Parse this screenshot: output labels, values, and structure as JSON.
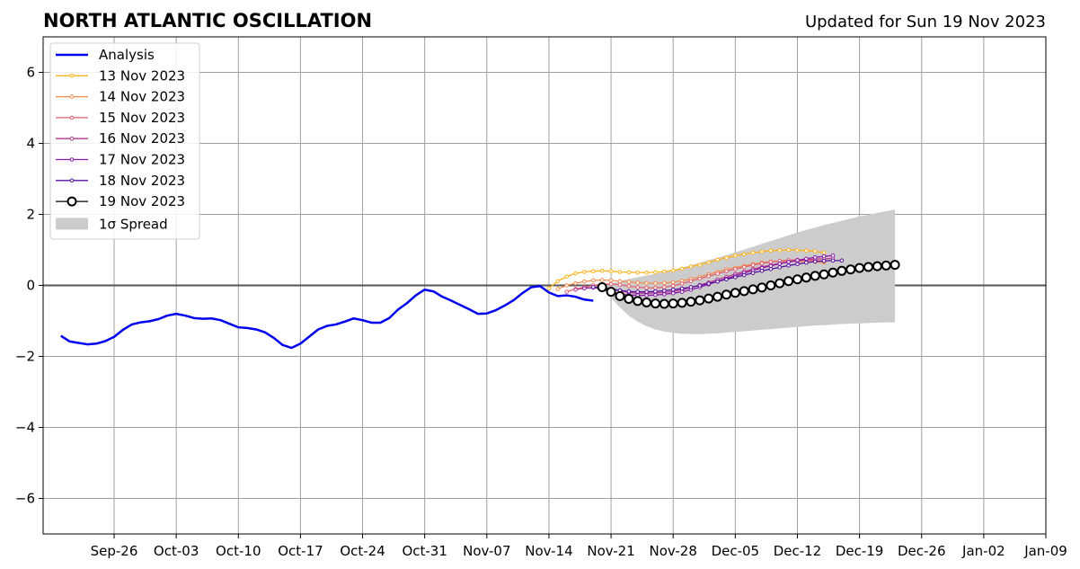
{
  "chart_data": {
    "type": "line",
    "title": "NORTH ATLANTIC OSCILLATION",
    "subtitle": "Updated for Sun 19 Nov 2023",
    "xlabel": "",
    "ylabel": "",
    "ylim": [
      -7,
      7
    ],
    "xlim": [
      "2023-09-18",
      "2024-01-09"
    ],
    "grid": true,
    "legend_position": "top-left",
    "x_ticks": [
      "Sep-26",
      "Oct-03",
      "Oct-10",
      "Oct-17",
      "Oct-24",
      "Oct-31",
      "Nov-07",
      "Nov-14",
      "Nov-21",
      "Nov-28",
      "Dec-05",
      "Dec-12",
      "Dec-19",
      "Dec-26",
      "Jan-02",
      "Jan-09"
    ],
    "y_ticks": [
      "−6",
      "−4",
      "−2",
      "0",
      "2",
      "4",
      "6"
    ],
    "analysis": {
      "name": "Analysis",
      "color": "#0000ee",
      "start": "2023-09-20",
      "values": [
        -1.42,
        -1.58,
        -1.62,
        -1.66,
        -1.64,
        -1.57,
        -1.45,
        -1.25,
        -1.1,
        -1.04,
        -1.01,
        -0.95,
        -0.85,
        -0.8,
        -0.85,
        -0.92,
        -0.94,
        -0.93,
        -0.98,
        -1.08,
        -1.18,
        -1.2,
        -1.24,
        -1.32,
        -1.48,
        -1.68,
        -1.76,
        -1.64,
        -1.44,
        -1.24,
        -1.14,
        -1.1,
        -1.02,
        -0.93,
        -0.98,
        -1.05,
        -1.05,
        -0.92,
        -0.68,
        -0.5,
        -0.28,
        -0.12,
        -0.17,
        -0.32,
        -0.43,
        -0.55,
        -0.67,
        -0.8,
        -0.79,
        -0.7,
        -0.57,
        -0.42,
        -0.22,
        -0.05,
        -0.02,
        -0.2,
        -0.3,
        -0.28,
        -0.32,
        -0.4,
        -0.43
      ]
    },
    "forecasts": [
      {
        "name": "13 Nov 2023",
        "color": "#ffb21c",
        "start": "2023-11-14",
        "values": [
          -0.08,
          0.12,
          0.25,
          0.34,
          0.38,
          0.4,
          0.41,
          0.4,
          0.38,
          0.37,
          0.36,
          0.36,
          0.37,
          0.39,
          0.42,
          0.47,
          0.53,
          0.58,
          0.65,
          0.72,
          0.78,
          0.84,
          0.88,
          0.92,
          0.95,
          0.98,
          0.99,
          1.0,
          0.99,
          0.98,
          0.96,
          0.92
        ]
      },
      {
        "name": "14 Nov 2023",
        "color": "#f08b50",
        "start": "2023-11-15",
        "values": [
          -0.1,
          0.0,
          0.06,
          0.11,
          0.14,
          0.15,
          0.14,
          0.12,
          0.1,
          0.08,
          0.06,
          0.06,
          0.07,
          0.09,
          0.13,
          0.18,
          0.24,
          0.31,
          0.38,
          0.45,
          0.5,
          0.55,
          0.6,
          0.64,
          0.67,
          0.68,
          0.68,
          0.68,
          0.67,
          0.66,
          0.65
        ]
      },
      {
        "name": "15 Nov 2023",
        "color": "#e06070",
        "start": "2023-11-16",
        "values": [
          -0.18,
          -0.1,
          -0.05,
          0.0,
          0.03,
          0.04,
          0.02,
          -0.02,
          -0.05,
          -0.07,
          -0.07,
          -0.05,
          -0.01,
          0.05,
          0.12,
          0.19,
          0.26,
          0.33,
          0.4,
          0.46,
          0.52,
          0.57,
          0.62,
          0.66,
          0.69,
          0.71,
          0.72,
          0.71,
          0.7,
          0.68
        ]
      },
      {
        "name": "16 Nov 2023",
        "color": "#b6388f",
        "start": "2023-11-17",
        "values": [
          -0.12,
          -0.08,
          -0.06,
          -0.06,
          -0.1,
          -0.15,
          -0.2,
          -0.22,
          -0.22,
          -0.21,
          -0.2,
          -0.17,
          -0.12,
          -0.06,
          0.01,
          0.08,
          0.16,
          0.24,
          0.32,
          0.39,
          0.46,
          0.52,
          0.57,
          0.62,
          0.66,
          0.69,
          0.72,
          0.74,
          0.75,
          0.76
        ]
      },
      {
        "name": "17 Nov 2023",
        "color": "#8b1aa8",
        "start": "2023-11-18",
        "values": [
          -0.08,
          -0.06,
          -0.1,
          -0.18,
          -0.24,
          -0.27,
          -0.28,
          -0.28,
          -0.27,
          -0.25,
          -0.22,
          -0.18,
          -0.12,
          -0.05,
          0.03,
          0.11,
          0.19,
          0.27,
          0.35,
          0.42,
          0.49,
          0.55,
          0.61,
          0.66,
          0.71,
          0.75,
          0.79,
          0.82,
          0.84
        ]
      },
      {
        "name": "18 Nov 2023",
        "color": "#560f9e",
        "start": "2023-11-19",
        "values": [
          -0.05,
          -0.07,
          -0.1,
          -0.14,
          -0.17,
          -0.18,
          -0.18,
          -0.17,
          -0.15,
          -0.12,
          -0.09,
          -0.05,
          0.0,
          0.05,
          0.11,
          0.17,
          0.23,
          0.29,
          0.35,
          0.41,
          0.46,
          0.51,
          0.56,
          0.6,
          0.64,
          0.67,
          0.69,
          0.7,
          0.7
        ]
      },
      {
        "name": "19 Nov 2023",
        "color": "#000000",
        "start": "2023-11-20",
        "values": [
          -0.05,
          -0.18,
          -0.3,
          -0.38,
          -0.44,
          -0.48,
          -0.51,
          -0.52,
          -0.51,
          -0.49,
          -0.46,
          -0.42,
          -0.37,
          -0.32,
          -0.26,
          -0.21,
          -0.16,
          -0.11,
          -0.06,
          0.0,
          0.06,
          0.12,
          0.17,
          0.22,
          0.27,
          0.31,
          0.36,
          0.41,
          0.45,
          0.49,
          0.52,
          0.54,
          0.56,
          0.58
        ]
      }
    ],
    "spread": {
      "name": "1σ Spread",
      "color": "#cccccc",
      "start": "2023-11-20",
      "lower": [
        -0.05,
        -0.35,
        -0.62,
        -0.85,
        -1.02,
        -1.15,
        -1.24,
        -1.3,
        -1.34,
        -1.36,
        -1.37,
        -1.37,
        -1.36,
        -1.35,
        -1.33,
        -1.31,
        -1.29,
        -1.27,
        -1.25,
        -1.23,
        -1.21,
        -1.19,
        -1.17,
        -1.15,
        -1.13,
        -1.12,
        -1.1,
        -1.09,
        -1.08,
        -1.07,
        -1.06,
        -1.05,
        -1.04,
        -1.04
      ],
      "upper": [
        -0.05,
        0.05,
        0.12,
        0.18,
        0.23,
        0.28,
        0.33,
        0.38,
        0.44,
        0.5,
        0.57,
        0.64,
        0.71,
        0.78,
        0.85,
        0.93,
        1.01,
        1.09,
        1.17,
        1.25,
        1.33,
        1.41,
        1.49,
        1.56,
        1.63,
        1.7,
        1.76,
        1.82,
        1.88,
        1.94,
        1.99,
        2.04,
        2.09,
        2.14
      ]
    }
  }
}
